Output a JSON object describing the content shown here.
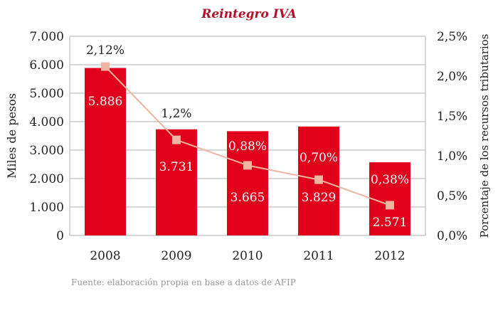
{
  "chart_data": {
    "type": "bar",
    "title": "Reintegro IVA",
    "categories": [
      "2008",
      "2009",
      "2010",
      "2011",
      "2012"
    ],
    "series": [
      {
        "type": "bar",
        "axis": "left",
        "values": [
          5886,
          3731,
          3665,
          3829,
          2571
        ],
        "labels": [
          "5.886",
          "3.731",
          "3.665",
          "3.829",
          "2.571"
        ],
        "color": "#e0001b"
      },
      {
        "type": "line",
        "axis": "right",
        "values": [
          2.12,
          1.2,
          0.88,
          0.7,
          0.38
        ],
        "labels": [
          "2,12%",
          "1,2%",
          "0,88%",
          "0,70%",
          "0,38%"
        ],
        "color": "#f0b4a0"
      }
    ],
    "ylabel": "Miles de pesos",
    "ylim": [
      0,
      7000
    ],
    "yticks": [
      "0",
      "1.000",
      "2.000",
      "3.000",
      "4.000",
      "5.000",
      "6.000",
      "7.000"
    ],
    "y2label": "Porcentaje de los recursos tributarios",
    "y2lim": [
      0,
      2.5
    ],
    "y2ticks": [
      "0,0%",
      "0,5%",
      "1,0%",
      "1,5%",
      "2,0%",
      "2,5%"
    ],
    "grid": true,
    "source": "Fuente: elaboración propia en base a datos de AFIP",
    "title_color": "#b0122b"
  }
}
